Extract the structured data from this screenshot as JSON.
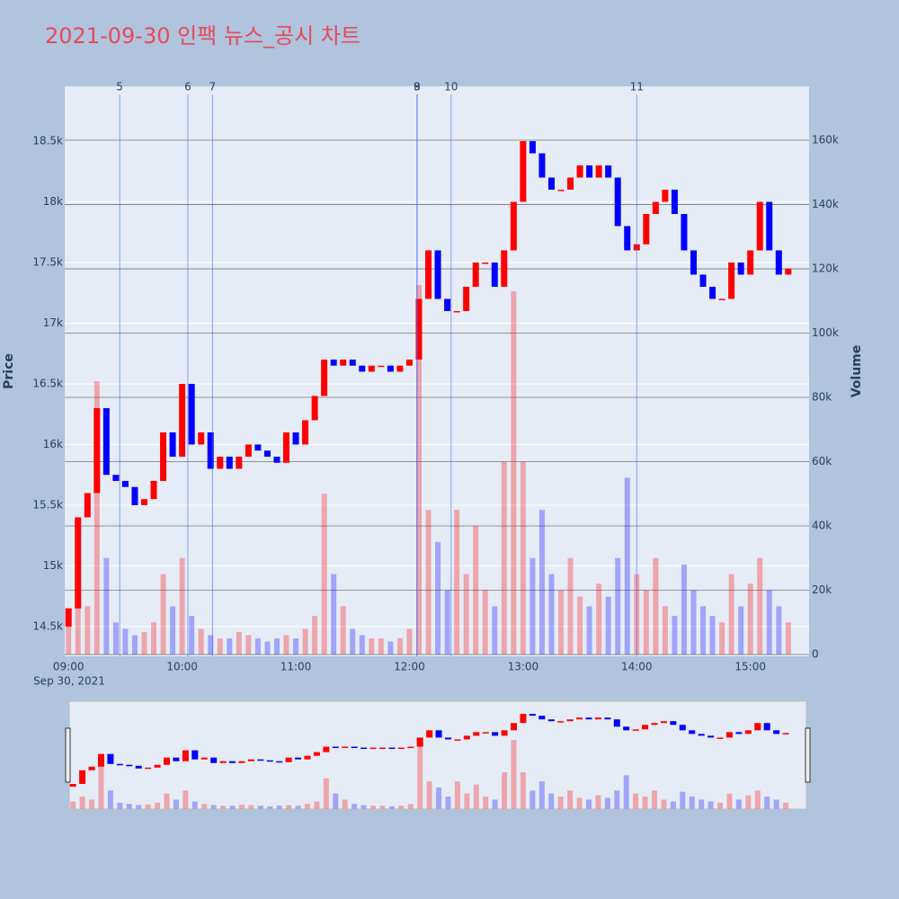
{
  "chart_data": {
    "type": "candlestick",
    "title": "2021-09-30 인팩 뉴스_공시 차트",
    "x_date_label": "Sep 30, 2021",
    "y_label": "Price",
    "y2_label": "Volume",
    "up_color": "#ff0000",
    "down_color": "#0000ff",
    "x": [
      "09:00",
      "09:05",
      "09:10",
      "09:15",
      "09:20",
      "09:25",
      "09:30",
      "09:35",
      "09:40",
      "09:45",
      "09:50",
      "09:55",
      "10:00",
      "10:05",
      "10:10",
      "10:15",
      "10:20",
      "10:25",
      "10:30",
      "10:35",
      "10:40",
      "10:45",
      "10:50",
      "10:55",
      "11:00",
      "11:05",
      "11:10",
      "11:15",
      "11:20",
      "11:25",
      "11:30",
      "11:35",
      "11:40",
      "11:45",
      "11:50",
      "11:55",
      "12:00",
      "12:05",
      "12:10",
      "12:15",
      "12:20",
      "12:25",
      "12:30",
      "12:35",
      "12:40",
      "12:45",
      "12:50",
      "12:55",
      "13:00",
      "13:05",
      "13:10",
      "13:15",
      "13:20",
      "13:25",
      "13:30",
      "13:35",
      "13:40",
      "13:45",
      "13:50",
      "13:55",
      "14:00",
      "14:05",
      "14:10",
      "14:15",
      "14:20",
      "14:25",
      "14:30",
      "14:35",
      "14:40",
      "14:45",
      "14:50",
      "14:55",
      "15:00",
      "15:05",
      "15:10",
      "15:15",
      "15:20"
    ],
    "open": [
      14500,
      14650,
      15400,
      15600,
      16300,
      15750,
      15700,
      15650,
      15500,
      15550,
      15700,
      16100,
      15900,
      16500,
      16000,
      16100,
      15800,
      15900,
      15800,
      15900,
      16000,
      15950,
      15900,
      15850,
      16100,
      16000,
      16200,
      16400,
      16700,
      16650,
      16700,
      16650,
      16600,
      16650,
      16650,
      16600,
      16650,
      16700,
      17200,
      17600,
      17200,
      17100,
      17100,
      17300,
      17500,
      17500,
      17300,
      17600,
      18000,
      18500,
      18400,
      18200,
      18100,
      18100,
      18200,
      18300,
      18200,
      18300,
      18200,
      17800,
      17600,
      17650,
      17900,
      18000,
      18100,
      17900,
      17600,
      17400,
      17300,
      17200,
      17200,
      17500,
      17400,
      17600,
      18000,
      17600,
      17400
    ],
    "close": [
      14650,
      15400,
      15600,
      16300,
      15750,
      15700,
      15650,
      15500,
      15550,
      15700,
      16100,
      15900,
      16500,
      16000,
      16100,
      15800,
      15900,
      15800,
      15900,
      16000,
      15950,
      15900,
      15850,
      16100,
      16000,
      16200,
      16400,
      16700,
      16650,
      16700,
      16650,
      16600,
      16650,
      16650,
      16600,
      16650,
      16700,
      17200,
      17600,
      17200,
      17100,
      17100,
      17300,
      17500,
      17500,
      17300,
      17600,
      18000,
      18500,
      18400,
      18200,
      18100,
      18100,
      18200,
      18300,
      18200,
      18300,
      18200,
      17800,
      17600,
      17650,
      17900,
      18000,
      18100,
      17900,
      17600,
      17400,
      17300,
      17200,
      17200,
      17500,
      17400,
      17600,
      18000,
      17600,
      17400,
      17450
    ],
    "volume": [
      12000,
      20000,
      15000,
      85000,
      30000,
      10000,
      8000,
      6000,
      7000,
      10000,
      25000,
      15000,
      30000,
      12000,
      8000,
      6000,
      5000,
      5000,
      7000,
      6000,
      5000,
      4000,
      5000,
      6000,
      5000,
      8000,
      12000,
      50000,
      25000,
      15000,
      8000,
      6000,
      5000,
      5000,
      4000,
      5000,
      8000,
      115000,
      45000,
      35000,
      20000,
      45000,
      25000,
      40000,
      20000,
      15000,
      60000,
      113000,
      60000,
      30000,
      45000,
      25000,
      20000,
      30000,
      18000,
      15000,
      22000,
      18000,
      30000,
      55000,
      25000,
      20000,
      30000,
      15000,
      12000,
      28000,
      20000,
      15000,
      12000,
      10000,
      25000,
      15000,
      22000,
      30000,
      20000,
      15000,
      10000
    ],
    "news": [
      {
        "label": "5",
        "x": "09:27"
      },
      {
        "label": "6",
        "x": "10:03"
      },
      {
        "label": "7",
        "x": "10:16"
      },
      {
        "label": "8",
        "x": "12:04"
      },
      {
        "label": "9",
        "x": "12:04"
      },
      {
        "label": "10",
        "x": "12:22"
      },
      {
        "label": "11",
        "x": "14:00"
      }
    ],
    "xlim": [
      "08:58",
      "15:31"
    ],
    "xticks": [
      "09:00",
      "10:00",
      "11:00",
      "12:00",
      "13:00",
      "14:00",
      "15:00"
    ],
    "ylim": [
      14255,
      18952
    ],
    "yticks": [
      {
        "value": 14500,
        "label": "14.5k"
      },
      {
        "value": 15000,
        "label": "15k"
      },
      {
        "value": 15500,
        "label": "15.5k"
      },
      {
        "value": 16000,
        "label": "16k"
      },
      {
        "value": 16500,
        "label": "16.5k"
      },
      {
        "value": 17000,
        "label": "17k"
      },
      {
        "value": 17500,
        "label": "17.5k"
      },
      {
        "value": 18000,
        "label": "18k"
      },
      {
        "value": 18500,
        "label": "18.5k"
      }
    ],
    "y2lim": [
      -560,
      176800
    ],
    "y2ticks": [
      0,
      {
        "value": 20000,
        "label": "20k"
      },
      {
        "value": 40000,
        "label": "40k"
      },
      {
        "value": 60000,
        "label": "60k"
      },
      {
        "value": 80000,
        "label": "80k"
      },
      {
        "value": 100000,
        "label": "100k"
      },
      {
        "value": 120000,
        "label": "120k"
      },
      {
        "value": 140000,
        "label": "140k"
      },
      {
        "value": 160000,
        "label": "160k"
      }
    ]
  }
}
